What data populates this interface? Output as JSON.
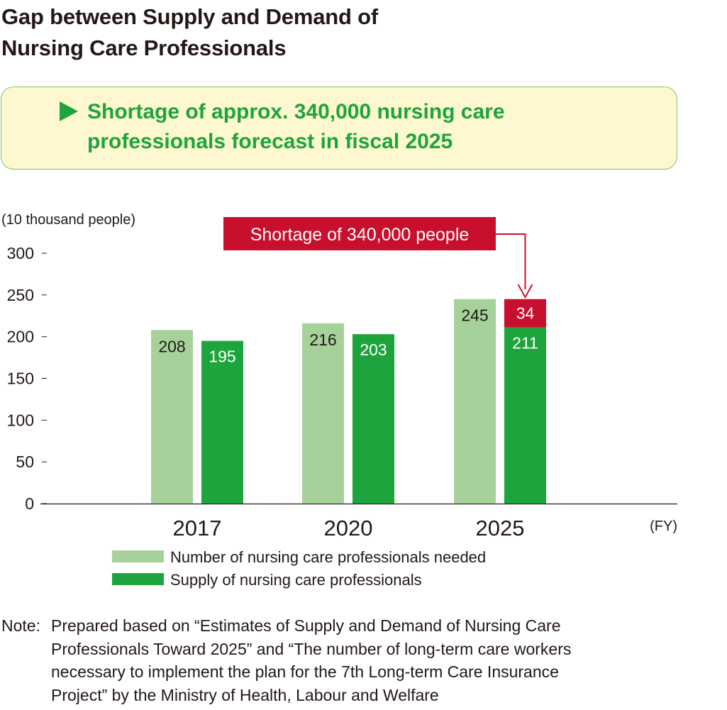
{
  "title_line1": "Gap between Supply and Demand of",
  "title_line2": "Nursing Care Professionals",
  "callout": {
    "line1": "Shortage of approx. 340,000 nursing care",
    "line2": "professionals forecast in fiscal 2025"
  },
  "chart_data": {
    "type": "bar",
    "ylabel": "(10 thousand people)",
    "xlabel": "(FY)",
    "ylim": [
      0,
      300
    ],
    "yticks": [
      0,
      50,
      100,
      150,
      200,
      250,
      300
    ],
    "categories": [
      "2017",
      "2020",
      "2025"
    ],
    "series": [
      {
        "name": "Number of nursing care professionals needed",
        "values": [
          208,
          216,
          245
        ],
        "color": "#a6d19a"
      },
      {
        "name": "Supply of nursing care professionals",
        "values": [
          195,
          203,
          211
        ],
        "color": "#1ea43c"
      }
    ],
    "shortage": {
      "category": "2025",
      "value": 34,
      "color": "#c8102e"
    },
    "annotation": "Shortage of 340,000 people"
  },
  "note": {
    "label": "Note:",
    "lines": [
      "Prepared based on “Estimates of Supply and Demand of Nursing Care",
      "Professionals Toward 2025” and “The number of long-term care workers",
      "necessary to implement the plan for the 7th Long-term Care Insurance",
      "Project” by the Ministry of Health, Labour and Welfare"
    ]
  }
}
